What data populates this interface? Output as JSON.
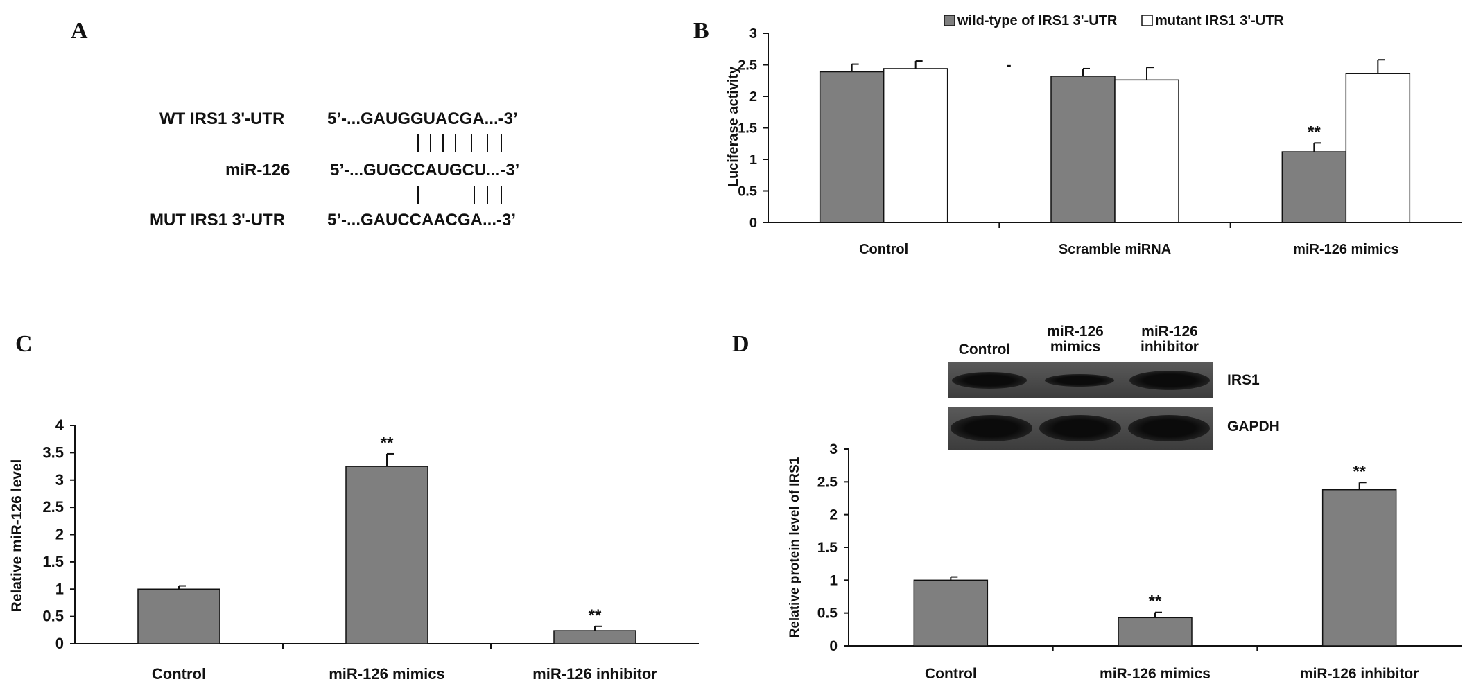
{
  "panels": {
    "A": {
      "letter": "A",
      "rows": [
        {
          "label": "WT IRS1 3'-UTR",
          "seq": "5’-...GAUGGUACGA...-3’"
        },
        {
          "label": "miR-126",
          "seq": "5’-...GUGCCAUGCU...-3’"
        },
        {
          "label": "MUT IRS1 3'-UTR",
          "seq": "5’-...GAUCCAACGA...-3’"
        }
      ]
    },
    "B": {
      "letter": "B"
    },
    "C": {
      "letter": "C"
    },
    "D": {
      "letter": "D",
      "blot": {
        "lanes": [
          "Control",
          "miR-126\nmimics",
          "miR-126\ninhibitor"
        ],
        "rows": [
          "IRS1",
          "GAPDH"
        ],
        "irs1_intensity": [
          1.0,
          0.45,
          2.4
        ]
      }
    }
  },
  "chart_data": [
    {
      "id": "B",
      "type": "bar",
      "categories": [
        "Control",
        "Scramble miRNA",
        "miR-126 mimics"
      ],
      "series": [
        {
          "name": "wild-type of IRS1 3'-UTR",
          "values": [
            2.39,
            2.32,
            1.12
          ],
          "errors": [
            0.12,
            0.12,
            0.14
          ],
          "color": "#7f7f7f"
        },
        {
          "name": "mutant IRS1 3'-UTR",
          "values": [
            2.44,
            2.26,
            2.36
          ],
          "errors": [
            0.12,
            0.2,
            0.22
          ],
          "color": "#ffffff"
        }
      ],
      "annotations": [
        {
          "category": "miR-126 mimics",
          "series": 0,
          "text": "**"
        },
        {
          "text": "-"
        }
      ],
      "ylabel": "Luciferase activity",
      "ylim": [
        0,
        3
      ],
      "yticks": [
        "0",
        "0.5",
        "1",
        "1.5",
        "2",
        "2.5",
        "3"
      ],
      "legend": "top",
      "grid": false
    },
    {
      "id": "C",
      "type": "bar",
      "categories": [
        "Control",
        "miR-126 mimics",
        "miR-126 inhibitor"
      ],
      "series": [
        {
          "values": [
            1.0,
            3.25,
            0.24
          ],
          "errors": [
            0.06,
            0.23,
            0.08
          ],
          "color": "#7f7f7f"
        }
      ],
      "annotations": [
        {
          "category": "miR-126 mimics",
          "text": "**"
        },
        {
          "category": "miR-126 inhibitor",
          "text": "**"
        }
      ],
      "ylabel": "Relative miR-126 level",
      "ylim": [
        0,
        4
      ],
      "yticks": [
        "0",
        "0.5",
        "1",
        "1.5",
        "2",
        "2.5",
        "3",
        "3.5",
        "4"
      ],
      "grid": false
    },
    {
      "id": "D",
      "type": "bar",
      "categories": [
        "Control",
        "miR-126 mimics",
        "miR-126 inhibitor"
      ],
      "series": [
        {
          "values": [
            1.0,
            0.43,
            2.38
          ],
          "errors": [
            0.05,
            0.08,
            0.11
          ],
          "color": "#7f7f7f"
        }
      ],
      "annotations": [
        {
          "category": "miR-126 mimics",
          "text": "**"
        },
        {
          "category": "miR-126 inhibitor",
          "text": "**"
        }
      ],
      "ylabel": "Relative protein level of IRS1",
      "ylim": [
        0,
        3
      ],
      "yticks": [
        "0",
        "0.5",
        "1",
        "1.5",
        "2",
        "2.5",
        "3"
      ],
      "grid": false
    }
  ]
}
